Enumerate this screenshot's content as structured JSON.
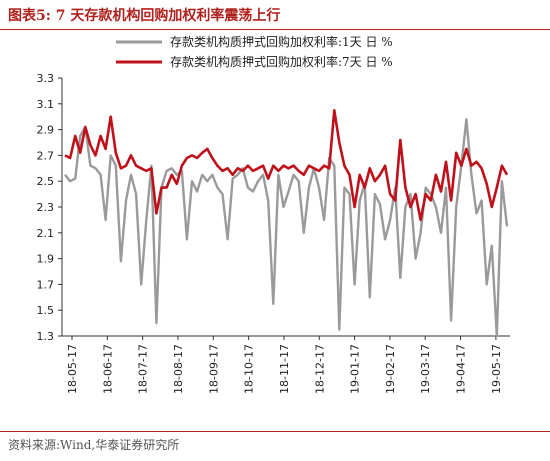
{
  "header": {
    "title": "图表5:  7 天存款机构回购加权利率震荡上行"
  },
  "footer": {
    "source": "资料来源:Wind,华泰证券研究所"
  },
  "colors": {
    "accent": "#b0211d",
    "series_1": "#9a9a9a",
    "series_2": "#c0101a"
  },
  "chart_data": {
    "type": "line",
    "xlabel": "",
    "ylabel": "",
    "ylim": [
      1.3,
      3.3
    ],
    "y_ticks": [
      "1.3",
      "1.5",
      "1.7",
      "1.9",
      "2.1",
      "2.3",
      "2.5",
      "2.7",
      "2.9",
      "3.1",
      "3.3"
    ],
    "x_ticks": [
      "18-05-17",
      "18-06-17",
      "18-07-17",
      "18-08-17",
      "18-09-17",
      "18-10-17",
      "18-11-17",
      "18-12-17",
      "19-01-17",
      "19-02-17",
      "19-03-17",
      "19-04-17",
      "19-05-17"
    ],
    "grid": false,
    "legend_position": "top",
    "series": [
      {
        "name": "存款类机构质押式回购加权利率:1天  日  %",
        "color": "#9a9a9a",
        "values": [
          2.55,
          2.5,
          2.52,
          2.85,
          2.92,
          2.62,
          2.6,
          2.55,
          2.2,
          2.7,
          2.62,
          1.88,
          2.35,
          2.55,
          2.4,
          1.7,
          2.2,
          2.62,
          1.4,
          2.45,
          2.58,
          2.6,
          2.55,
          2.58,
          2.05,
          2.5,
          2.42,
          2.55,
          2.5,
          2.55,
          2.45,
          2.4,
          2.05,
          2.52,
          2.55,
          2.6,
          2.45,
          2.42,
          2.5,
          2.55,
          2.35,
          1.55,
          2.55,
          2.3,
          2.42,
          2.55,
          2.5,
          2.1,
          2.45,
          2.6,
          2.45,
          2.2,
          2.68,
          2.62,
          1.35,
          2.45,
          2.4,
          1.7,
          2.35,
          2.48,
          1.6,
          2.4,
          2.32,
          2.05,
          2.2,
          2.45,
          1.75,
          2.3,
          2.4,
          1.9,
          2.1,
          2.45,
          2.4,
          2.3,
          2.1,
          2.45,
          1.42,
          2.3,
          2.62,
          2.98,
          2.55,
          2.25,
          2.35,
          1.7,
          2.0,
          1.3,
          2.5,
          2.15
        ]
      },
      {
        "name": "存款类机构质押式回购加权利率:7天  日  %",
        "color": "#c0101a",
        "values": [
          2.7,
          2.68,
          2.85,
          2.72,
          2.92,
          2.78,
          2.7,
          2.85,
          2.75,
          3.0,
          2.72,
          2.6,
          2.62,
          2.7,
          2.62,
          2.6,
          2.58,
          2.6,
          2.25,
          2.45,
          2.45,
          2.55,
          2.48,
          2.62,
          2.68,
          2.7,
          2.68,
          2.72,
          2.75,
          2.68,
          2.62,
          2.58,
          2.6,
          2.55,
          2.6,
          2.58,
          2.62,
          2.58,
          2.6,
          2.62,
          2.52,
          2.62,
          2.58,
          2.62,
          2.6,
          2.62,
          2.58,
          2.55,
          2.62,
          2.6,
          2.58,
          2.62,
          2.6,
          3.05,
          2.8,
          2.62,
          2.55,
          2.3,
          2.55,
          2.45,
          2.6,
          2.5,
          2.55,
          2.62,
          2.4,
          2.35,
          2.82,
          2.45,
          2.3,
          2.4,
          2.2,
          2.4,
          2.35,
          2.55,
          2.42,
          2.65,
          2.35,
          2.72,
          2.62,
          2.75,
          2.62,
          2.65,
          2.6,
          2.48,
          2.3,
          2.45,
          2.62,
          2.55
        ]
      }
    ]
  }
}
